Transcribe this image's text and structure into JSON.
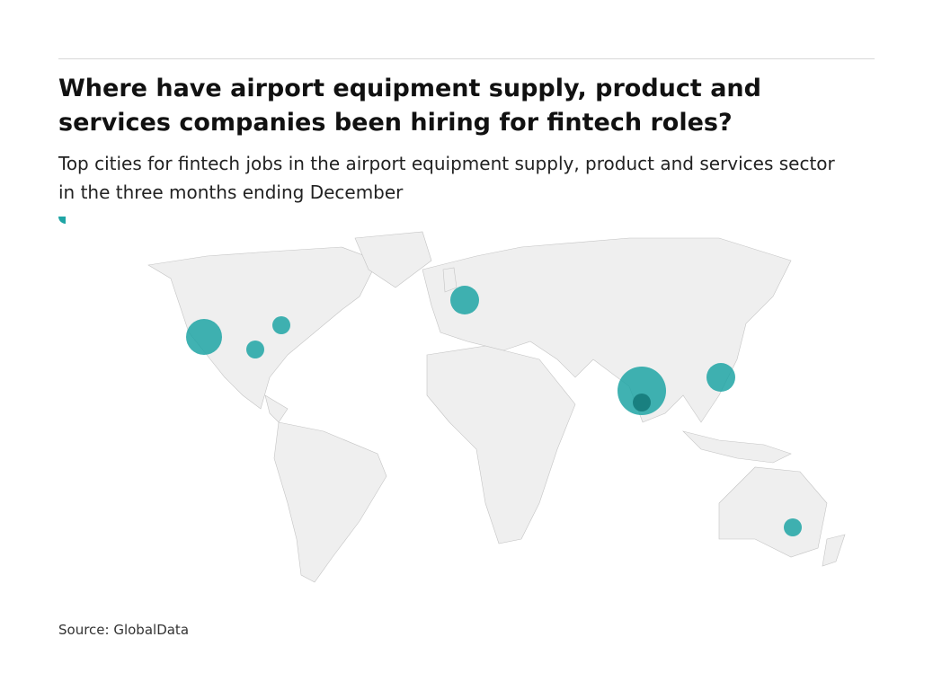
{
  "title": "Where have airport equipment supply, product and services companies been hiring for fintech roles?",
  "subtitle": "Top cities for fintech jobs in the airport equipment supply, product and services sector in the three months ending December",
  "source": "Source: GlobalData"
}
